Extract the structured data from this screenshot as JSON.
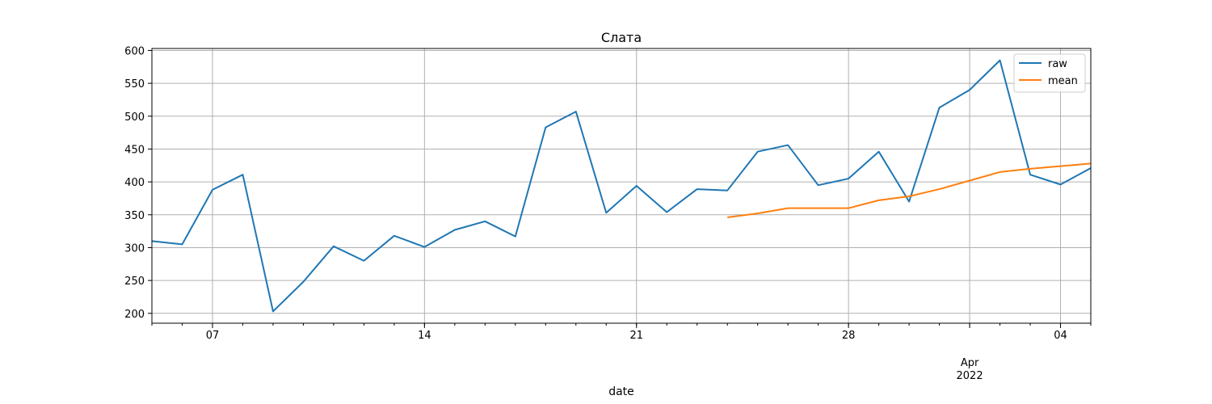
{
  "chart_data": {
    "type": "line",
    "title": "Слата",
    "xlabel": "date",
    "ylabel": "",
    "x_start": "2022-03-05",
    "x_end": "2022-04-05",
    "ylim": [
      185,
      603
    ],
    "yticks": [
      200,
      250,
      300,
      350,
      400,
      450,
      500,
      550,
      600
    ],
    "xticks_major": [
      {
        "date": "2022-03-07",
        "label": "07"
      },
      {
        "date": "2022-03-14",
        "label": "14"
      },
      {
        "date": "2022-03-21",
        "label": "21"
      },
      {
        "date": "2022-03-28",
        "label": "28"
      },
      {
        "date": "2022-04-01",
        "label": "Apr"
      },
      {
        "date": "2022-04-04",
        "label": "04"
      }
    ],
    "xtick_year_label": "2022",
    "grid": true,
    "legend_position": "top-right",
    "colors": {
      "raw": "#1f77b4",
      "mean": "#ff7f0e",
      "grid": "#b0b0b0"
    },
    "series": [
      {
        "name": "raw",
        "x": [
          "2022-03-05",
          "2022-03-06",
          "2022-03-07",
          "2022-03-08",
          "2022-03-09",
          "2022-03-10",
          "2022-03-11",
          "2022-03-12",
          "2022-03-13",
          "2022-03-14",
          "2022-03-15",
          "2022-03-16",
          "2022-03-17",
          "2022-03-18",
          "2022-03-19",
          "2022-03-20",
          "2022-03-21",
          "2022-03-22",
          "2022-03-23",
          "2022-03-24",
          "2022-03-25",
          "2022-03-26",
          "2022-03-27",
          "2022-03-28",
          "2022-03-29",
          "2022-03-30",
          "2022-03-31",
          "2022-04-01",
          "2022-04-02",
          "2022-04-03",
          "2022-04-04",
          "2022-04-05"
        ],
        "values": [
          310,
          305,
          388,
          411,
          203,
          248,
          302,
          280,
          318,
          301,
          327,
          340,
          317,
          483,
          507,
          353,
          394,
          354,
          389,
          387,
          446,
          456,
          395,
          405,
          446,
          370,
          513,
          540,
          585,
          411,
          396,
          421
        ]
      },
      {
        "name": "mean",
        "x": [
          "2022-03-24",
          "2022-03-25",
          "2022-03-26",
          "2022-03-27",
          "2022-03-28",
          "2022-03-29",
          "2022-03-30",
          "2022-03-31",
          "2022-04-01",
          "2022-04-02",
          "2022-04-03",
          "2022-04-04",
          "2022-04-05"
        ],
        "values": [
          346,
          352,
          360,
          360,
          360,
          372,
          378,
          389,
          402,
          415,
          420,
          424,
          428
        ]
      }
    ]
  }
}
